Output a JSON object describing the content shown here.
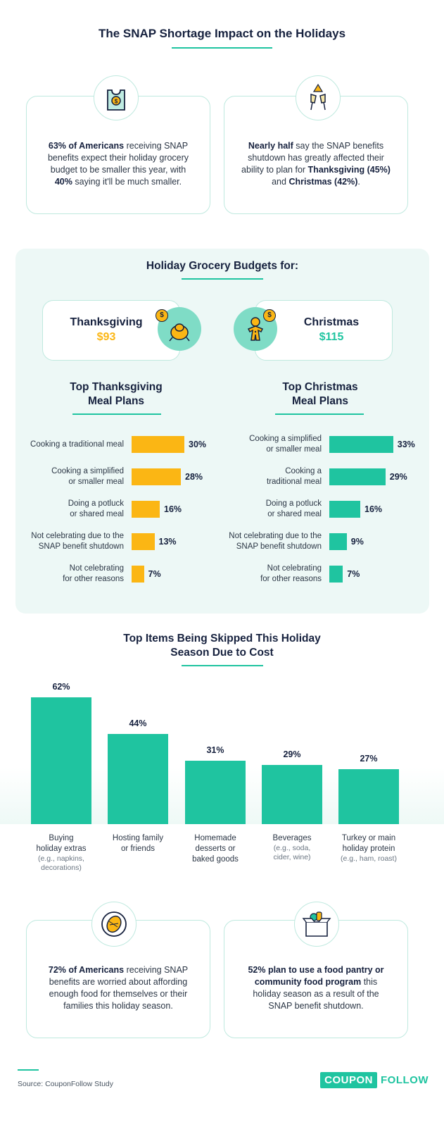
{
  "header": {
    "title": "The SNAP Shortage Impact on the Holidays"
  },
  "stats_top": [
    {
      "highlight": "63% of Americans",
      "rest_a": " receiving SNAP benefits expect their holiday grocery budget to be smaller this year, with ",
      "highlight2": "40%",
      "rest_b": " saying it'll be much smaller."
    },
    {
      "highlight": "Nearly half",
      "rest_a": " say the SNAP benefits shutdown has greatly affected their ability to plan for ",
      "highlight2": "Thanksgiving (45%)",
      "mid": " and ",
      "highlight3": "Christmas (42%)",
      "rest_b": "."
    }
  ],
  "budgets": {
    "title": "Holiday Grocery Budgets for:",
    "thanksgiving": {
      "label": "Thanksgiving",
      "value": "$93"
    },
    "christmas": {
      "label": "Christmas",
      "value": "$115"
    }
  },
  "colors": {
    "accent": "#1fc4a0",
    "thanksgiving": "#fbb614",
    "christmas": "#1fc4a0",
    "dark": "#16213e"
  },
  "chart_data": [
    {
      "type": "bar",
      "orientation": "horizontal",
      "title": "Top Thanksgiving Meal Plans",
      "categories": [
        "Cooking a traditional meal",
        "Cooking a simplified or smaller meal",
        "Doing a potluck or shared meal",
        "Not celebrating due to the SNAP benefit shutdown",
        "Not celebrating for other reasons"
      ],
      "category_lines": [
        [
          "Cooking a traditional meal"
        ],
        [
          "Cooking a simplified",
          "or smaller meal"
        ],
        [
          "Doing a potluck",
          "or shared meal"
        ],
        [
          "Not celebrating due to the",
          "SNAP benefit shutdown"
        ],
        [
          "Not celebrating",
          "for other reasons"
        ]
      ],
      "values": [
        30,
        28,
        16,
        13,
        7
      ],
      "labels": [
        "30%",
        "28%",
        "16%",
        "13%",
        "7%"
      ],
      "color": "#fbb614"
    },
    {
      "type": "bar",
      "orientation": "horizontal",
      "title": "Top Christmas Meal Plans",
      "categories": [
        "Cooking a simplified or smaller meal",
        "Cooking a traditional meal",
        "Doing a potluck or shared meal",
        "Not celebrating due to the SNAP benefit shutdown",
        "Not celebrating for other reasons"
      ],
      "category_lines": [
        [
          "Cooking a simplified",
          "or smaller meal"
        ],
        [
          "Cooking a",
          "traditional meal"
        ],
        [
          "Doing a potluck",
          "or shared meal"
        ],
        [
          "Not celebrating due to the",
          "SNAP benefit shutdown"
        ],
        [
          "Not celebrating",
          "for other reasons"
        ]
      ],
      "values": [
        33,
        29,
        16,
        9,
        7
      ],
      "labels": [
        "33%",
        "29%",
        "16%",
        "9%",
        "7%"
      ],
      "color": "#1fc4a0"
    },
    {
      "type": "bar",
      "orientation": "vertical",
      "title": "Top Items Being Skipped This Holiday Season Due to Cost",
      "categories": [
        "Buying holiday extras",
        "Hosting family or friends",
        "Homemade desserts or baked goods",
        "Beverages",
        "Turkey or main holiday protein"
      ],
      "category_lines": [
        [
          "Buying",
          "holiday extras"
        ],
        [
          "Hosting family",
          "or friends"
        ],
        [
          "Homemade",
          "desserts or",
          "baked goods"
        ],
        [
          "Beverages"
        ],
        [
          "Turkey or main",
          "holiday protein"
        ]
      ],
      "category_notes": [
        [
          "(e.g., napkins,",
          "decorations)"
        ],
        [],
        [],
        [
          "(e.g., soda,",
          "cider, wine)"
        ],
        [
          "(e.g., ham, roast)"
        ]
      ],
      "values": [
        62,
        44,
        31,
        29,
        27
      ],
      "labels": [
        "62%",
        "44%",
        "31%",
        "29%",
        "27%"
      ],
      "color": "#1fc4a0"
    }
  ],
  "stats_bottom": [
    {
      "highlight": "72% of Americans",
      "rest": " receiving SNAP benefits are worried about affording enough food for themselves or their families this holiday season."
    },
    {
      "highlight": "52% plan to use a food pantry or community food program",
      "rest": " this holiday season as a result of the SNAP benefit shutdown."
    }
  ],
  "footer": {
    "source": "Source: CouponFollow Study",
    "logo_box": "COUPON",
    "logo_text": "FOLLOW"
  }
}
